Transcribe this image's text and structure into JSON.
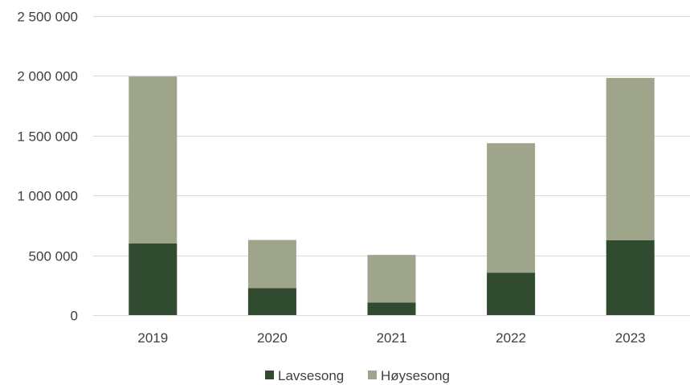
{
  "chart_data": {
    "type": "bar",
    "stacked": true,
    "categories": [
      "2019",
      "2020",
      "2021",
      "2022",
      "2023"
    ],
    "series": [
      {
        "name": "Lavsesong",
        "color": "#304b30",
        "values": [
          600000,
          225000,
          105000,
          355000,
          625000
        ]
      },
      {
        "name": "Høysesong",
        "color": "#9ea58a",
        "values": [
          1395000,
          403000,
          398000,
          1082000,
          1358000
        ]
      }
    ],
    "yticks": [
      0,
      500000,
      1000000,
      1500000,
      2000000,
      2500000
    ],
    "ytick_labels": [
      "0",
      "500 000",
      "1 000 000",
      "1 500 000",
      "2 000 000",
      "2 500 000"
    ],
    "ylim": [
      0,
      2500000
    ],
    "grid": true,
    "legend_position": "bottom",
    "title": "",
    "xlabel": "",
    "ylabel": ""
  }
}
